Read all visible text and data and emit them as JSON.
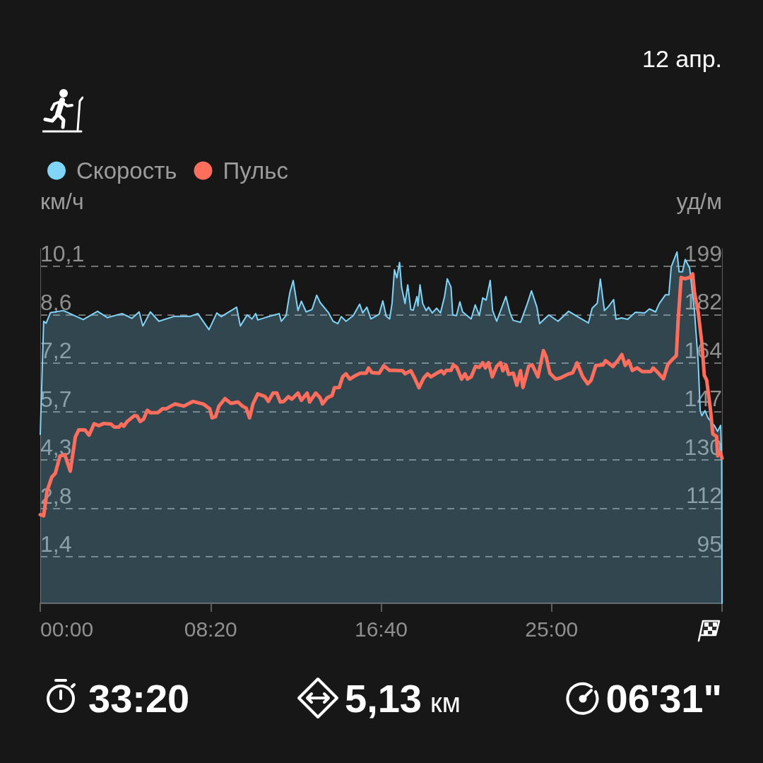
{
  "chart_data": {
    "type": "line",
    "annotations": [
      "12 апр.",
      "33:20",
      "5,13 км",
      "06'31\""
    ],
    "ylabel": "км/ч",
    "y2label": "уд/м",
    "xlim": [
      0,
      2000
    ],
    "xticks": [
      {
        "value": 0,
        "label": "00:00"
      },
      {
        "value": 500,
        "label": "08:20"
      },
      {
        "value": 1000,
        "label": "16:40"
      },
      {
        "value": 1500,
        "label": "25:00"
      },
      {
        "value": 2000,
        "label": null
      }
    ],
    "ylim": [
      0,
      10.6
    ],
    "yticks": [
      {
        "value": 1.4,
        "label": "1,4"
      },
      {
        "value": 2.84,
        "label": "2,8"
      },
      {
        "value": 4.29,
        "label": "4,3"
      },
      {
        "value": 5.73,
        "label": "5,7"
      },
      {
        "value": 7.18,
        "label": "7,2"
      },
      {
        "value": 8.62,
        "label": "8,6"
      },
      {
        "value": 10.07,
        "label": "10,1"
      }
    ],
    "y2lim": [
      78.21,
      205.35
    ],
    "y2ticks": [
      95,
      {
        "value": 112.33,
        "label": "112"
      },
      {
        "value": 129.67,
        "label": "130"
      },
      147,
      {
        "value": 164.33,
        "label": "164"
      },
      {
        "value": 181.67,
        "label": "182"
      },
      199
    ],
    "grid": "y",
    "legend": "top left",
    "marker": "none",
    "series": [
      {
        "name": "Скорость",
        "type": "area",
        "color": "#80d4f8",
        "x": [
          0,
          10,
          17,
          30,
          68,
          126,
          168,
          197,
          240,
          269,
          290,
          301,
          323,
          348,
          394,
          441,
          462,
          495,
          518,
          531,
          576,
          587,
          607,
          621,
          632,
          638,
          663,
          701,
          707,
          721,
          732,
          742,
          756,
          766,
          780,
          797,
          811,
          821,
          846,
          859,
          873,
          883,
          897,
          918,
          937,
          946,
          958,
          970,
          994,
          1005,
          1015,
          1025,
          1032,
          1039,
          1046,
          1054,
          1060,
          1070,
          1078,
          1087,
          1094,
          1105,
          1108,
          1114,
          1122,
          1132,
          1139,
          1150,
          1163,
          1174,
          1186,
          1194,
          1205,
          1210,
          1221,
          1231,
          1239,
          1264,
          1276,
          1288,
          1298,
          1308,
          1320,
          1327,
          1339,
          1353,
          1366,
          1378,
          1387,
          1409,
          1429,
          1441,
          1457,
          1465,
          1492,
          1519,
          1550,
          1576,
          1608,
          1619,
          1634,
          1643,
          1655,
          1666,
          1682,
          1689,
          1705,
          1723,
          1746,
          1773,
          1787,
          1805,
          1816,
          1834,
          1844,
          1851,
          1868,
          1874,
          1884,
          1892,
          1905,
          1919,
          1930,
          1936,
          1941,
          1950,
          1959,
          1977,
          1987,
          1996,
          1999,
          2000
        ],
        "values": [
          5.05,
          8.43,
          8.37,
          8.69,
          8.75,
          8.48,
          8.73,
          8.54,
          8.66,
          8.52,
          8.71,
          8.29,
          8.71,
          8.43,
          8.58,
          8.58,
          8.66,
          8.18,
          8.68,
          8.57,
          8.85,
          8.29,
          8.62,
          8.5,
          8.66,
          8.47,
          8.55,
          8.66,
          8.43,
          8.6,
          9.28,
          9.65,
          8.75,
          9.03,
          8.71,
          8.78,
          9.21,
          8.99,
          8.68,
          8.43,
          8.36,
          8.57,
          8.43,
          8.6,
          8.94,
          8.68,
          8.85,
          8.5,
          8.64,
          9.04,
          8.58,
          8.5,
          8.97,
          9.97,
          9.73,
          10.19,
          9.45,
          8.96,
          9.52,
          8.78,
          8.76,
          9.17,
          8.89,
          9.52,
          8.96,
          8.75,
          8.85,
          8.68,
          8.82,
          8.68,
          9.17,
          9.7,
          9.45,
          8.62,
          8.6,
          9.01,
          8.71,
          8.5,
          8.92,
          8.6,
          9.13,
          9.06,
          9.65,
          8.75,
          8.43,
          8.82,
          9.17,
          8.68,
          8.46,
          8.4,
          8.96,
          9.34,
          8.85,
          8.36,
          8.62,
          8.43,
          8.73,
          8.57,
          8.38,
          8.82,
          8.97,
          9.69,
          8.75,
          8.86,
          9.08,
          8.49,
          8.53,
          8.49,
          8.7,
          8.68,
          8.8,
          8.71,
          8.96,
          9.22,
          9.22,
          10.06,
          10.5,
          9.91,
          9.91,
          10.28,
          10.02,
          8.75,
          7.22,
          5.76,
          5.61,
          5.76,
          5.54,
          5.32,
          5.14,
          5.32,
          4.31,
          0
        ]
      },
      {
        "name": "Пульс",
        "color": "#ff6d5c",
        "axis": "y2",
        "x": [
          0,
          10,
          20,
          34,
          44,
          58,
          72,
          88,
          103,
          113,
          131,
          143,
          158,
          172,
          186,
          207,
          217,
          231,
          238,
          245,
          255,
          276,
          284,
          293,
          303,
          314,
          324,
          345,
          359,
          369,
          383,
          396,
          421,
          448,
          479,
          497,
          504,
          514,
          524,
          542,
          559,
          580,
          593,
          604,
          614,
          624,
          638,
          659,
          669,
          683,
          694,
          704,
          714,
          728,
          738,
          756,
          766,
          783,
          790,
          808,
          821,
          828,
          842,
          856,
          863,
          877,
          887,
          897,
          908,
          925,
          939,
          956,
          963,
          973,
          994,
          1008,
          1025,
          1042,
          1063,
          1070,
          1087,
          1098,
          1111,
          1125,
          1136,
          1146,
          1163,
          1177,
          1184,
          1191,
          1205,
          1212,
          1222,
          1236,
          1246,
          1253,
          1264,
          1277,
          1288,
          1298,
          1306,
          1315,
          1326,
          1339,
          1350,
          1357,
          1366,
          1374,
          1388,
          1398,
          1409,
          1416,
          1433,
          1443,
          1460,
          1476,
          1484,
          1495,
          1512,
          1526,
          1547,
          1562,
          1575,
          1591,
          1606,
          1616,
          1630,
          1651,
          1658,
          1680,
          1694,
          1706,
          1716,
          1726,
          1737,
          1751,
          1766,
          1791,
          1798,
          1812,
          1828,
          1841,
          1855,
          1866,
          1871,
          1880,
          1891,
          1905,
          1914,
          1919,
          1930,
          1941,
          1948,
          1955,
          1966,
          1973,
          1984,
          1987,
          1995,
          2000
        ],
        "values": [
          110.0,
          109.6,
          118.5,
          123.5,
          124.8,
          131.1,
          131.5,
          125.6,
          137.9,
          140.4,
          140.4,
          138.5,
          142.6,
          141.9,
          142.7,
          142.5,
          141.4,
          141.4,
          142.5,
          141.7,
          143.4,
          145.5,
          145.4,
          143.4,
          144.2,
          147.4,
          146.5,
          146.6,
          148.0,
          147.9,
          148.9,
          149.7,
          148.9,
          150.6,
          149.6,
          148.0,
          144.7,
          145.1,
          148.9,
          151.6,
          149.9,
          150.4,
          148.9,
          148.2,
          144.7,
          149.7,
          153.3,
          152.4,
          150.6,
          153.6,
          153.6,
          150.4,
          150.6,
          152.3,
          151.4,
          153.6,
          151.0,
          153.6,
          150.4,
          153.6,
          151.9,
          149.7,
          151.9,
          152.7,
          155.5,
          155.6,
          159.4,
          160.5,
          158.6,
          159.9,
          160.7,
          160.7,
          162.6,
          160.9,
          160.7,
          163.4,
          161.7,
          161.7,
          161.6,
          160.5,
          161.6,
          159.0,
          155.5,
          159.0,
          160.5,
          159.4,
          160.7,
          161.6,
          160.5,
          161.7,
          161.7,
          163.7,
          162.8,
          158.6,
          160.5,
          158.6,
          159.4,
          163.2,
          162.8,
          164.5,
          162.6,
          164.5,
          159.4,
          163.2,
          164.5,
          161.6,
          163.7,
          160.3,
          160.7,
          156.4,
          161.6,
          155.6,
          163.2,
          163.7,
          159.4,
          168.8,
          166.6,
          160.7,
          158.6,
          159.0,
          160.3,
          160.9,
          164.4,
          159.5,
          156.9,
          158.2,
          163.5,
          163.7,
          165.2,
          163.1,
          165.2,
          167.4,
          163.5,
          165.2,
          161.7,
          162.6,
          161.3,
          161.3,
          162.6,
          160.9,
          158.7,
          163.9,
          165.7,
          167.0,
          179.2,
          195.0,
          194.6,
          195.0,
          196.3,
          189.7,
          182.7,
          171.3,
          159.9,
          158.2,
          147.7,
          138.9,
          138.1,
          131.1,
          132.4,
          130.2
        ]
      }
    ]
  }
}
